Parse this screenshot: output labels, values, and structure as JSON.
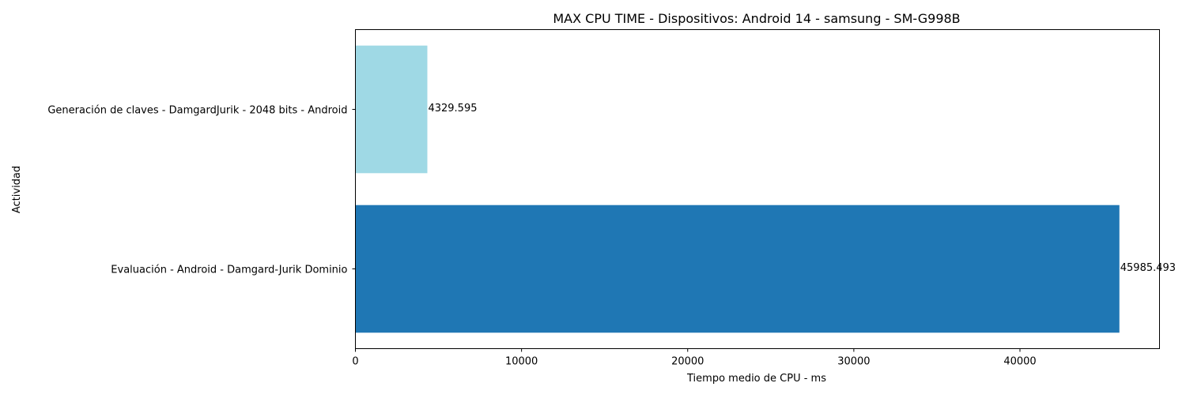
{
  "chart_data": {
    "type": "bar",
    "orientation": "horizontal",
    "title": "MAX CPU TIME - Dispositivos: Android 14 - samsung - SM-G998B",
    "xlabel": "Tiempo medio de CPU - ms",
    "ylabel": "Actividad",
    "xlim": [
      0,
      48400
    ],
    "xticks": [
      0,
      10000,
      20000,
      30000,
      40000
    ],
    "xtick_labels": [
      "0",
      "10000",
      "20000",
      "30000",
      "40000"
    ],
    "grid": false,
    "bars": [
      {
        "label": "Generación de claves - DamgardJurik - 2048 bits - Android",
        "value": 4329.595,
        "value_label": "4329.595",
        "color": "#9fd9e5"
      },
      {
        "label": "Evaluación - Android - Damgard-Jurik Dominio",
        "value": 45985.493,
        "value_label": "45985.493",
        "color": "#1f77b4"
      }
    ]
  }
}
